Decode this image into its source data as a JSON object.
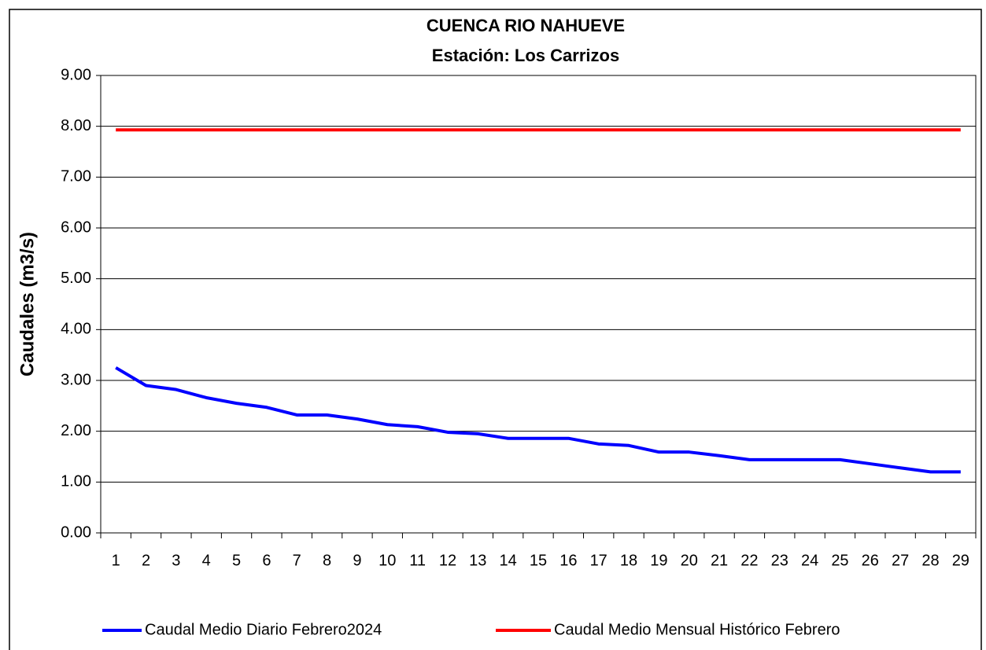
{
  "chart_data": {
    "type": "line",
    "title": "CUENCA RIO NAHUEVE",
    "subtitle": "Estación: Los Carrizos",
    "y_label": "Caudales (m3/s)",
    "categories": [
      "1",
      "2",
      "3",
      "4",
      "5",
      "6",
      "7",
      "8",
      "9",
      "10",
      "11",
      "12",
      "13",
      "14",
      "15",
      "16",
      "17",
      "18",
      "19",
      "20",
      "21",
      "22",
      "23",
      "24",
      "25",
      "26",
      "27",
      "28",
      "29"
    ],
    "series": [
      {
        "name": "Caudal Medio Diario Febrero2024",
        "color": "#0000ff",
        "values": [
          3.25,
          2.9,
          2.82,
          2.66,
          2.55,
          2.47,
          2.32,
          2.32,
          2.24,
          2.13,
          2.09,
          1.98,
          1.95,
          1.86,
          1.86,
          1.86,
          1.75,
          1.72,
          1.59,
          1.59,
          1.52,
          1.44,
          1.44,
          1.44,
          1.44,
          1.36,
          1.28,
          1.2,
          1.2
        ]
      },
      {
        "name": "Caudal Medio Mensual Histórico Febrero",
        "color": "#ff0000",
        "values": [
          7.93,
          7.93,
          7.93,
          7.93,
          7.93,
          7.93,
          7.93,
          7.93,
          7.93,
          7.93,
          7.93,
          7.93,
          7.93,
          7.93,
          7.93,
          7.93,
          7.93,
          7.93,
          7.93,
          7.93,
          7.93,
          7.93,
          7.93,
          7.93,
          7.93,
          7.93,
          7.93,
          7.93,
          7.93
        ]
      }
    ],
    "ylim": [
      0,
      9
    ],
    "yticks": [
      {
        "value": 0,
        "label": "0.00"
      },
      {
        "value": 1,
        "label": "1.00"
      },
      {
        "value": 2,
        "label": "2.00"
      },
      {
        "value": 3,
        "label": "3.00"
      },
      {
        "value": 4,
        "label": "4.00"
      },
      {
        "value": 5,
        "label": "5.00"
      },
      {
        "value": 6,
        "label": "6.00"
      },
      {
        "value": 7,
        "label": "7.00"
      },
      {
        "value": 8,
        "label": "8.00"
      },
      {
        "value": 9,
        "label": "9.00"
      }
    ],
    "grid": true,
    "legend": "bottom"
  }
}
